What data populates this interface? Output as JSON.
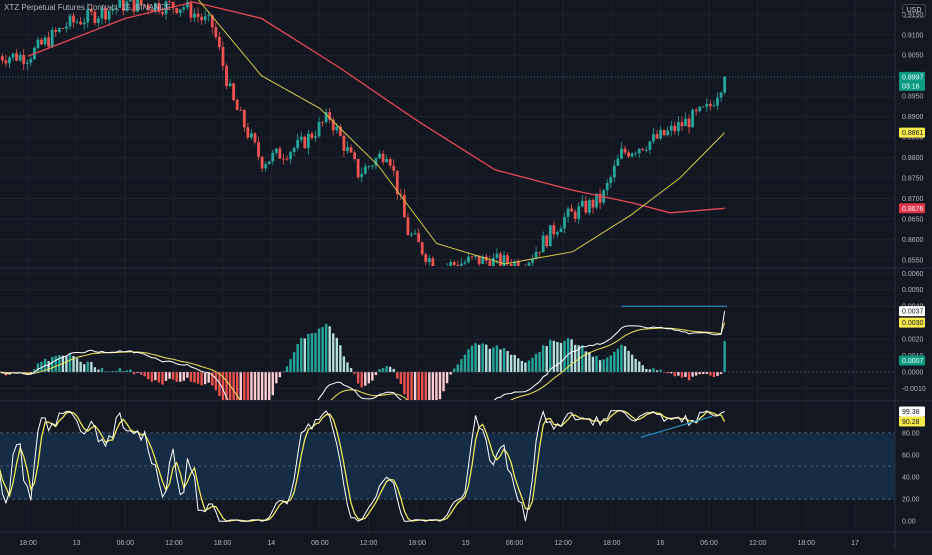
{
  "header": {
    "title": "XTZ Perpetual Futures Contract, 15, BINANCE",
    "currency": "USD"
  },
  "colors": {
    "bg": "#131722",
    "grid": "#1e222d",
    "up": "#26a69a",
    "down": "#ef5350",
    "ema_fast": "#d4c94b",
    "ema_slow": "#e84855",
    "line_white": "#ffffff",
    "line_yellow": "#f0e65a",
    "trend_cyan": "#2aa7d9",
    "band": "#16304a",
    "last_price_bg": "#089981",
    "text": "#d1d4dc",
    "axis_text": "#b2b5be"
  },
  "time_axis": {
    "ticks": [
      {
        "label": "18:00",
        "t": 0.0
      },
      {
        "label": "13",
        "t": 0.25
      },
      {
        "label": "06:00",
        "t": 0.5
      },
      {
        "label": "12:00",
        "t": 0.75
      },
      {
        "label": "18:00",
        "t": 1.0
      },
      {
        "label": "14",
        "t": 1.25
      },
      {
        "label": "06:00",
        "t": 1.5
      },
      {
        "label": "12:00",
        "t": 1.75
      },
      {
        "label": "18:00",
        "t": 2.0
      },
      {
        "label": "15",
        "t": 2.25
      },
      {
        "label": "06:00",
        "t": 2.5
      },
      {
        "label": "12:00",
        "t": 2.75
      },
      {
        "label": "18:00",
        "t": 3.0
      },
      {
        "label": "16",
        "t": 3.25
      },
      {
        "label": "06:00",
        "t": 3.5
      },
      {
        "label": "12:00",
        "t": 3.75
      },
      {
        "label": "18:00",
        "t": 4.0
      },
      {
        "label": "17",
        "t": 4.25
      }
    ]
  },
  "price_pane": {
    "axis": [
      "0.9150",
      "0.9100",
      "0.9050",
      "0.8950",
      "0.8900",
      "0.8850",
      "0.8800",
      "0.8750",
      "0.8700",
      "0.8650",
      "0.8600",
      "0.8550"
    ],
    "ylim": [
      0.8535,
      0.9185
    ],
    "last_price": "0.8997",
    "countdown": "03:16",
    "ema_fast_value": "0.8861",
    "ema_slow_value": "0.8676",
    "key_points": [
      {
        "t": 0.0,
        "p": 0.9048
      },
      {
        "t": 0.2,
        "p": 0.9125
      },
      {
        "t": 0.5,
        "p": 0.9175
      },
      {
        "t": 0.8,
        "p": 0.917
      },
      {
        "t": 0.95,
        "p": 0.912
      },
      {
        "t": 1.05,
        "p": 0.894
      },
      {
        "t": 1.2,
        "p": 0.879
      },
      {
        "t": 1.4,
        "p": 0.883
      },
      {
        "t": 1.55,
        "p": 0.89
      },
      {
        "t": 1.7,
        "p": 0.876
      },
      {
        "t": 1.85,
        "p": 0.882
      },
      {
        "t": 1.95,
        "p": 0.862
      },
      {
        "t": 2.1,
        "p": 0.853
      },
      {
        "t": 2.3,
        "p": 0.855
      },
      {
        "t": 2.55,
        "p": 0.854
      },
      {
        "t": 2.75,
        "p": 0.865
      },
      {
        "t": 2.95,
        "p": 0.87
      },
      {
        "t": 3.05,
        "p": 0.881
      },
      {
        "t": 3.25,
        "p": 0.885
      },
      {
        "t": 3.5,
        "p": 0.892
      },
      {
        "t": 3.58,
        "p": 0.8997
      }
    ],
    "ema_fast_points": [
      {
        "t": 0.85,
        "p": 0.92
      },
      {
        "t": 1.2,
        "p": 0.9
      },
      {
        "t": 1.5,
        "p": 0.892
      },
      {
        "t": 1.8,
        "p": 0.878
      },
      {
        "t": 2.1,
        "p": 0.859
      },
      {
        "t": 2.45,
        "p": 0.854
      },
      {
        "t": 2.8,
        "p": 0.857
      },
      {
        "t": 3.1,
        "p": 0.866
      },
      {
        "t": 3.35,
        "p": 0.875
      },
      {
        "t": 3.58,
        "p": 0.8861
      }
    ],
    "ema_slow_points": [
      {
        "t": 0.0,
        "p": 0.9048
      },
      {
        "t": 0.5,
        "p": 0.914
      },
      {
        "t": 0.85,
        "p": 0.918
      },
      {
        "t": 1.2,
        "p": 0.914
      },
      {
        "t": 1.6,
        "p": 0.902
      },
      {
        "t": 2.0,
        "p": 0.889
      },
      {
        "t": 2.4,
        "p": 0.877
      },
      {
        "t": 2.8,
        "p": 0.872
      },
      {
        "t": 3.1,
        "p": 0.869
      },
      {
        "t": 3.3,
        "p": 0.8665
      },
      {
        "t": 3.58,
        "p": 0.8676
      }
    ]
  },
  "macd_pane": {
    "axis": [
      "0.0060",
      "0.0050",
      "0.0040",
      "0.0020",
      "0.0010",
      "0.0000",
      "-0.0010"
    ],
    "ylim": [
      -0.0017,
      0.0062
    ],
    "macd_value": "0.0037",
    "signal_value": "0.0030",
    "hist_value": "0.0007",
    "trend_level": 0.004
  },
  "stoch_pane": {
    "axis": [
      "80.00",
      "60.00",
      "40.00",
      "20.00",
      "0.00"
    ],
    "ylim": [
      -8,
      108
    ],
    "k_value": "99.38",
    "d_value": "90.28",
    "upper_band": 80,
    "mid_band": 50,
    "lower_band": 20
  },
  "chart_data": [
    {
      "type": "candlestick",
      "title": "XTZ Perpetual Futures Contract, 15, BINANCE",
      "ylabel": "USD",
      "ylim": [
        0.8535,
        0.9185
      ],
      "series": [
        {
          "name": "price",
          "points": [
            {
              "x": "18:00",
              "y": 0.9048
            },
            {
              "x": "06:00",
              "y": 0.9175
            },
            {
              "x": "18:00",
              "y": 0.879
            },
            {
              "x": "12:00",
              "y": 0.882
            },
            {
              "x": "15",
              "y": 0.855
            },
            {
              "x": "18:00",
              "y": 0.87
            },
            {
              "x": "16",
              "y": 0.885
            },
            {
              "x": "last",
              "y": 0.8997
            }
          ]
        },
        {
          "name": "ema_fast",
          "last": 0.8861
        },
        {
          "name": "ema_slow",
          "last": 0.8676
        }
      ],
      "grid": true
    },
    {
      "type": "line",
      "ylim": [
        -0.0017,
        0.0062
      ],
      "series": [
        {
          "name": "macd",
          "last": 0.0037
        },
        {
          "name": "signal",
          "last": 0.003
        },
        {
          "name": "histogram",
          "last": 0.0007
        }
      ]
    },
    {
      "type": "line",
      "ylim": [
        0,
        100
      ],
      "series": [
        {
          "name": "k",
          "last": 99.38
        },
        {
          "name": "d",
          "last": 90.28
        }
      ]
    }
  ]
}
